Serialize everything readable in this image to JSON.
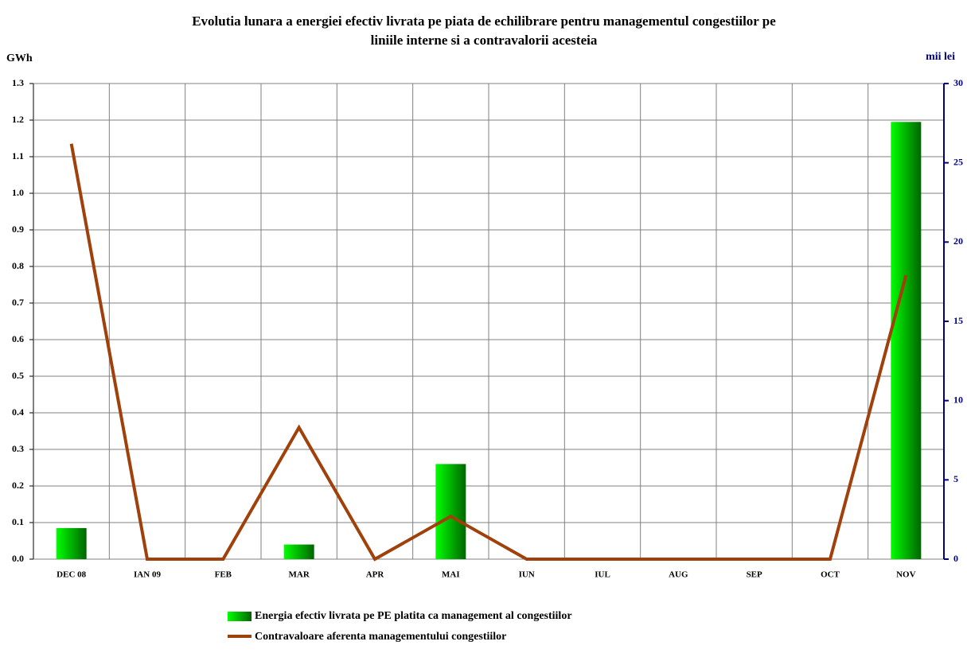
{
  "chart_data": {
    "type": "bar_line",
    "title": [
      "Evolutia lunara a energiei efectiv livrata pe piata de echilibrare pentru managementul congestiilor pe",
      "liniile interne si a contravalorii acesteia"
    ],
    "y_label": "GWh",
    "y2_label": "mii lei",
    "categories": [
      "DEC 08",
      "IAN 09",
      "FEB",
      "MAR",
      "APR",
      "MAI",
      "IUN",
      "IUL",
      "AUG",
      "SEP",
      "OCT",
      "NOV"
    ],
    "series": [
      {
        "name": "Energia efectiv livrata pe PE platita ca management al congestiilor",
        "color": "#00ff00",
        "type": "bar",
        "values": [
          0.085,
          0,
          0,
          0.04,
          0,
          0.26,
          0,
          0,
          0,
          0,
          0,
          1.195
        ]
      },
      {
        "name": "Contravaloare aferenta managementului congestiilor",
        "color": "#a0400a",
        "type": "line",
        "axis": "y2",
        "values": [
          26.2,
          0,
          0,
          8.3,
          0,
          2.7,
          0,
          0,
          0,
          0,
          0,
          17.9
        ]
      }
    ],
    "ylim": [
      0,
      1.3
    ],
    "yticks": [
      {
        "value": 0,
        "label": "0.0"
      },
      0.1,
      0.2,
      0.3,
      0.4,
      0.5,
      0.6,
      0.7,
      0.8,
      0.9,
      {
        "value": 1,
        "label": "1.0"
      },
      1.1,
      1.2,
      1.3
    ],
    "y2lim": [
      0,
      30
    ],
    "y2ticks": [
      0,
      5,
      10,
      15,
      20,
      25,
      30
    ],
    "y2_color": "#000080",
    "grid": true
  }
}
